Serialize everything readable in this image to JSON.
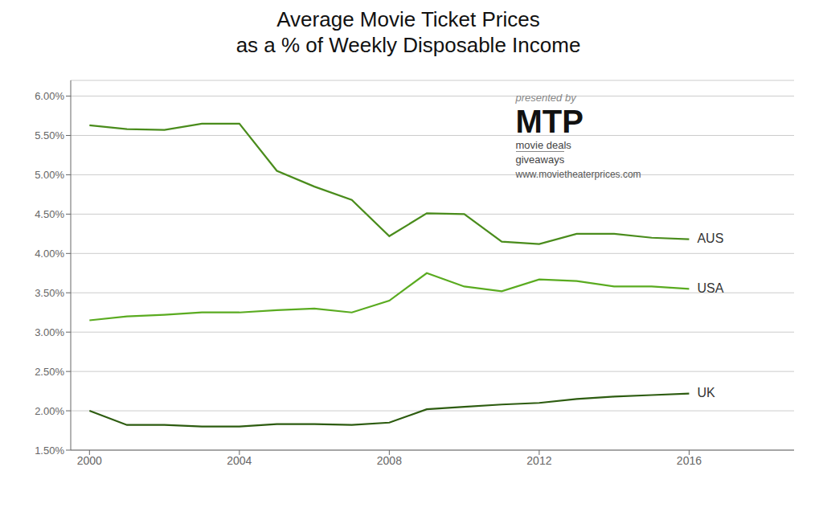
{
  "chart_data": {
    "type": "line",
    "title": "Average Movie Ticket Prices\nas a % of Weekly Disposable Income",
    "x": [
      2000,
      2001,
      2002,
      2003,
      2004,
      2005,
      2006,
      2007,
      2008,
      2009,
      2010,
      2011,
      2012,
      2013,
      2014,
      2015,
      2016
    ],
    "series": [
      {
        "name": "AUS",
        "color": "#4a8c1c",
        "values": [
          0.0563,
          0.0558,
          0.0557,
          0.0565,
          0.0565,
          0.0505,
          0.0485,
          0.0468,
          0.0422,
          0.0451,
          0.045,
          0.0415,
          0.0412,
          0.0425,
          0.0425,
          0.042,
          0.0418
        ]
      },
      {
        "name": "USA",
        "color": "#5aab20",
        "values": [
          0.0315,
          0.032,
          0.0322,
          0.0325,
          0.0325,
          0.0328,
          0.033,
          0.0325,
          0.034,
          0.0375,
          0.0358,
          0.0352,
          0.0367,
          0.0365,
          0.0358,
          0.0358,
          0.0355
        ]
      },
      {
        "name": "UK",
        "color": "#2d5c10",
        "values": [
          0.02,
          0.0182,
          0.0182,
          0.018,
          0.018,
          0.0183,
          0.0183,
          0.0182,
          0.0185,
          0.0202,
          0.0205,
          0.0208,
          0.021,
          0.0215,
          0.0218,
          0.022,
          0.0222
        ]
      }
    ],
    "xlim": [
      1999.5,
      2018.8
    ],
    "xticks": [
      2000,
      2004,
      2008,
      2012,
      2016
    ],
    "ylim": [
      0.015,
      0.062
    ],
    "yticks": [
      {
        "value": 0.015,
        "label": "1.50%"
      },
      {
        "value": 0.02,
        "label": "2.00%"
      },
      {
        "value": 0.025,
        "label": "2.50%"
      },
      {
        "value": 0.03,
        "label": "3.00%"
      },
      {
        "value": 0.035,
        "label": "3.50%"
      },
      {
        "value": 0.04,
        "label": "4.00%"
      },
      {
        "value": 0.045,
        "label": "4.50%"
      },
      {
        "value": 0.05,
        "label": "5.00%"
      },
      {
        "value": 0.055,
        "label": "5.50%"
      },
      {
        "value": 0.06,
        "label": "6.00%"
      }
    ],
    "grid": "y",
    "annotations": [
      "presented by",
      "MTP",
      "movie deals",
      "giveaways",
      "www.movietheaterprices.com"
    ]
  }
}
